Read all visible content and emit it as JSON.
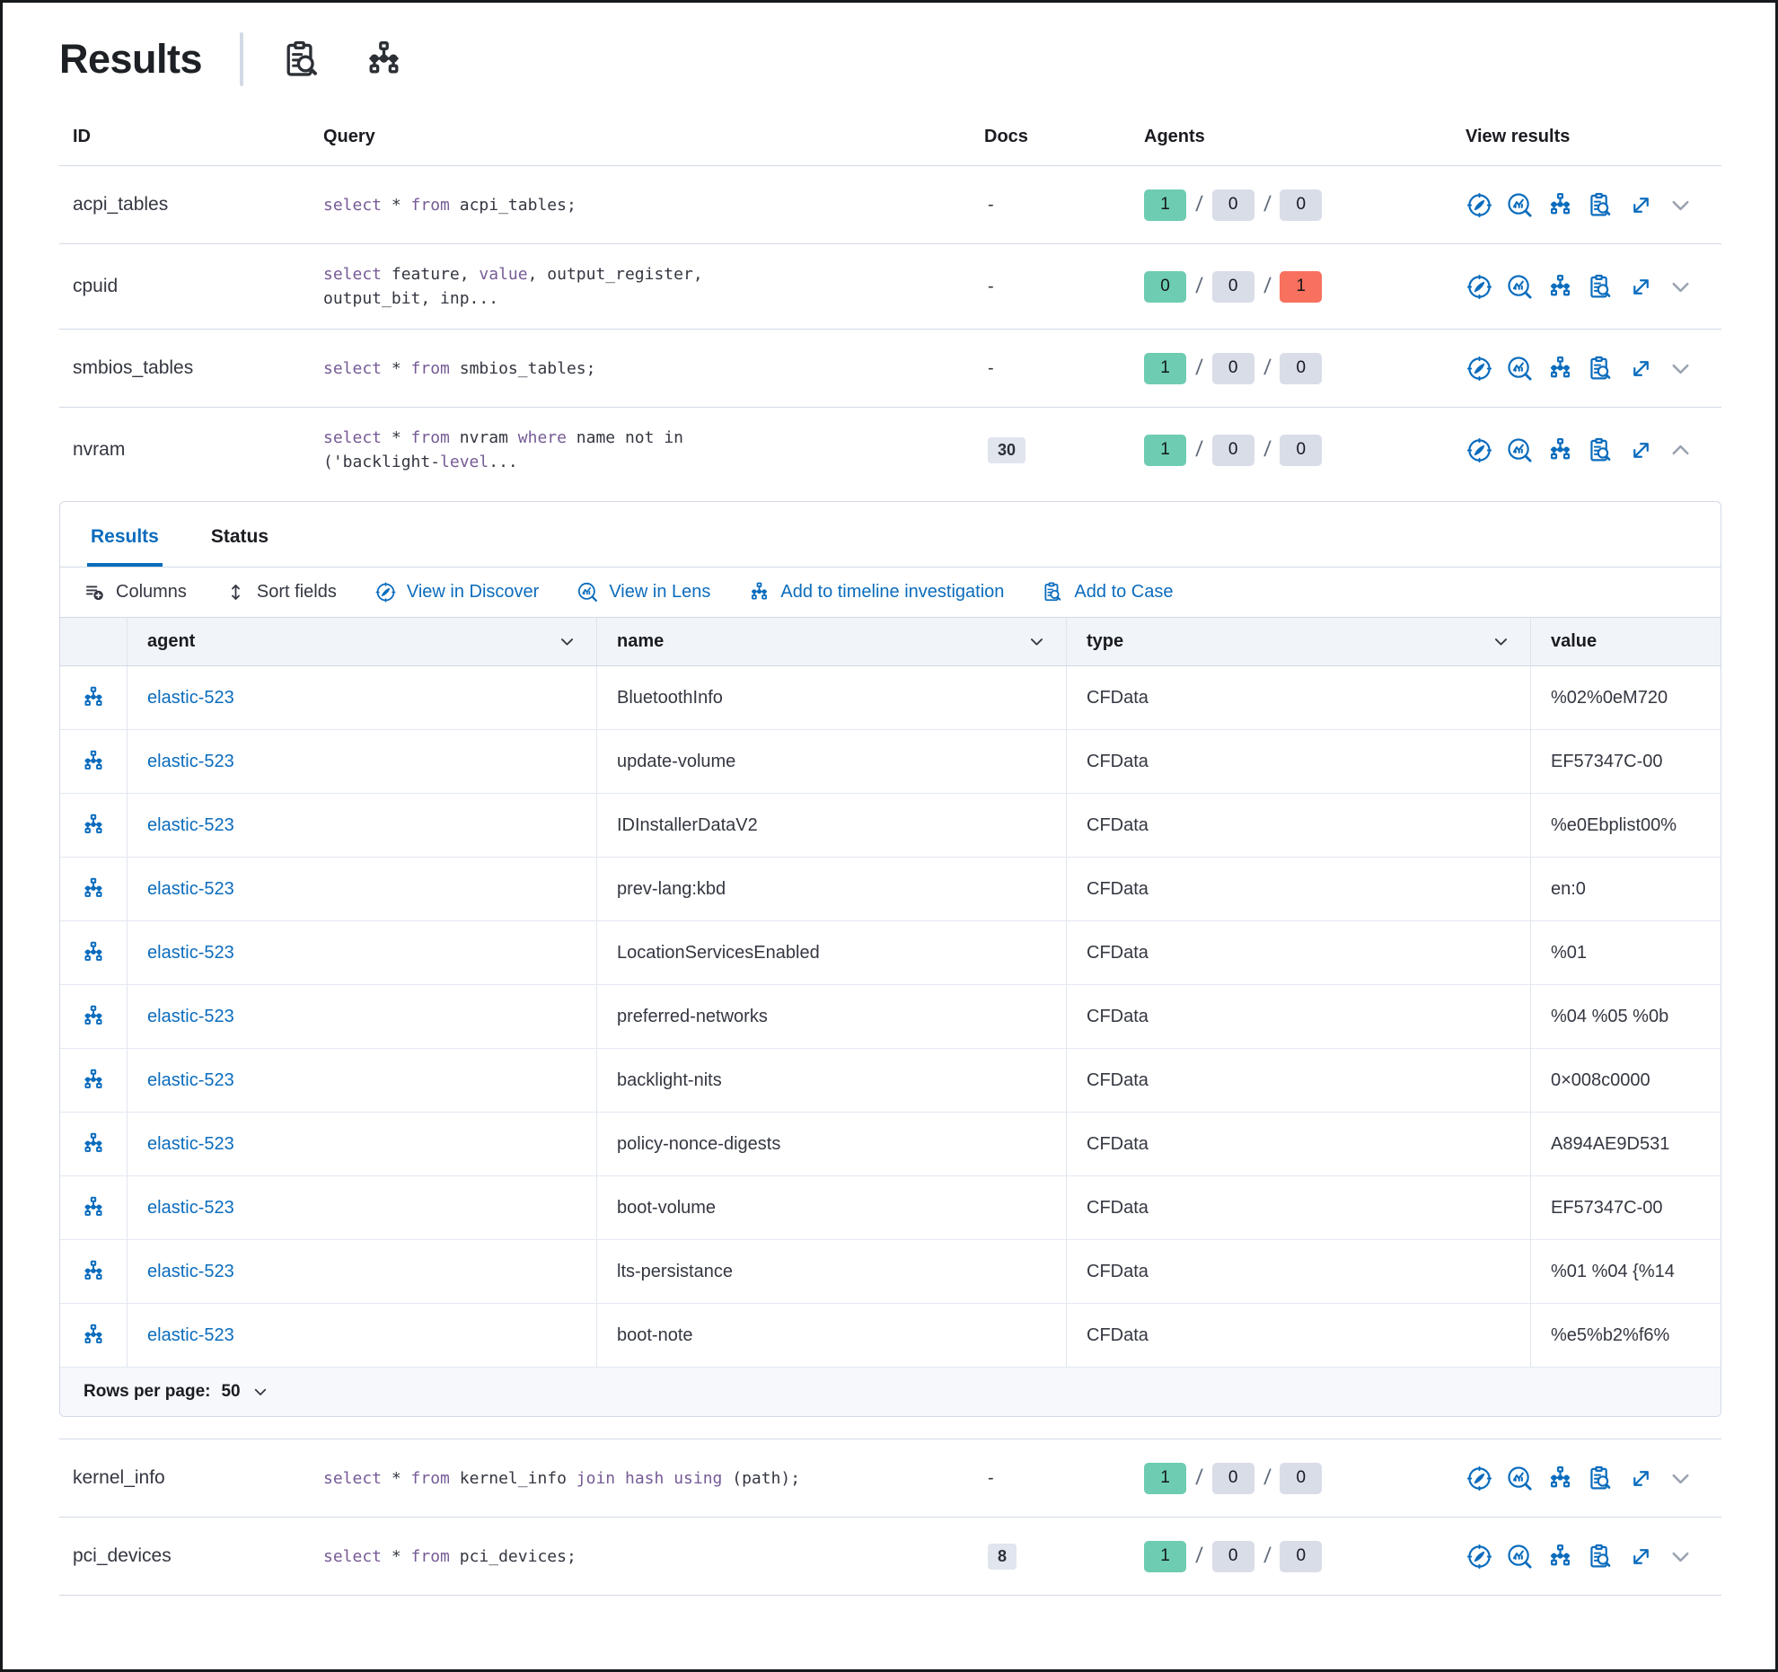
{
  "header": {
    "title": "Results",
    "icons": [
      "clipboard-search-icon",
      "network-diagram-icon"
    ]
  },
  "colors": {
    "accent_blue": "#0b6cbd",
    "keyword_purple": "#765b96",
    "badge_green": "#6dccb1",
    "badge_gray": "#d9dde8",
    "badge_red": "#f8705e",
    "docs_badge_bg": "#e0e5ee"
  },
  "table": {
    "headers": {
      "id": "ID",
      "query": "Query",
      "docs": "Docs",
      "agents": "Agents",
      "view": "View results"
    },
    "view_icons": [
      "view-in-discover-icon",
      "view-in-lens-icon",
      "add-to-timeline-icon",
      "add-to-case-icon",
      "open-fullscreen-icon",
      "toggle-row-icon"
    ],
    "rows": [
      {
        "id": "acpi_tables",
        "query": [
          [
            [
              "select",
              1
            ],
            [
              " * ",
              0
            ],
            [
              "from",
              1
            ],
            [
              " acpi_tables;",
              0
            ]
          ]
        ],
        "docs": "-",
        "docs_badge": false,
        "agents": [
          [
            "1",
            "green"
          ],
          [
            "0",
            "gray"
          ],
          [
            "0",
            "gray"
          ]
        ],
        "expanded": false
      },
      {
        "id": "cpuid",
        "query": [
          [
            [
              "select",
              1
            ],
            [
              " feature, ",
              0
            ],
            [
              "value",
              1
            ],
            [
              ", output_register,",
              0
            ]
          ],
          [
            [
              "output_bit, inp...",
              0
            ]
          ]
        ],
        "docs": "-",
        "docs_badge": false,
        "agents": [
          [
            "0",
            "green"
          ],
          [
            "0",
            "gray"
          ],
          [
            "1",
            "red"
          ]
        ],
        "expanded": false
      },
      {
        "id": "smbios_tables",
        "query": [
          [
            [
              "select",
              1
            ],
            [
              " * ",
              0
            ],
            [
              "from",
              1
            ],
            [
              " smbios_tables;",
              0
            ]
          ]
        ],
        "docs": "-",
        "docs_badge": false,
        "agents": [
          [
            "1",
            "green"
          ],
          [
            "0",
            "gray"
          ],
          [
            "0",
            "gray"
          ]
        ],
        "expanded": false
      },
      {
        "id": "nvram",
        "query": [
          [
            [
              "select",
              1
            ],
            [
              " * ",
              0
            ],
            [
              "from",
              1
            ],
            [
              " nvram ",
              0
            ],
            [
              "where",
              1
            ],
            [
              " name not in",
              0
            ]
          ],
          [
            [
              "('backlight-",
              0
            ],
            [
              "level",
              1
            ],
            [
              "...",
              0
            ]
          ]
        ],
        "docs": "30",
        "docs_badge": true,
        "agents": [
          [
            "1",
            "green"
          ],
          [
            "0",
            "gray"
          ],
          [
            "0",
            "gray"
          ]
        ],
        "expanded": true
      },
      {
        "id": "kernel_info",
        "query": [
          [
            [
              "select",
              1
            ],
            [
              " * ",
              0
            ],
            [
              "from",
              1
            ],
            [
              " kernel_info ",
              0
            ],
            [
              "join",
              1
            ],
            [
              " ",
              0
            ],
            [
              "hash",
              1
            ],
            [
              " ",
              0
            ],
            [
              "using",
              1
            ],
            [
              " (path);",
              0
            ]
          ]
        ],
        "docs": "-",
        "docs_badge": false,
        "agents": [
          [
            "1",
            "green"
          ],
          [
            "0",
            "gray"
          ],
          [
            "0",
            "gray"
          ]
        ],
        "expanded": false
      },
      {
        "id": "pci_devices",
        "query": [
          [
            [
              "select",
              1
            ],
            [
              " * ",
              0
            ],
            [
              "from",
              1
            ],
            [
              " pci_devices;",
              0
            ]
          ]
        ],
        "docs": "8",
        "docs_badge": true,
        "agents": [
          [
            "1",
            "green"
          ],
          [
            "0",
            "gray"
          ],
          [
            "0",
            "gray"
          ]
        ],
        "expanded": false
      }
    ]
  },
  "panel": {
    "tabs": [
      {
        "label": "Results",
        "active": true
      },
      {
        "label": "Status",
        "active": false
      }
    ],
    "toolbar": [
      {
        "label": "Columns",
        "icon": "columns-icon",
        "blue": false
      },
      {
        "label": "Sort fields",
        "icon": "sort-fields-icon",
        "blue": false
      },
      {
        "label": "View in Discover",
        "icon": "discover-icon",
        "blue": true
      },
      {
        "label": "View in Lens",
        "icon": "lens-icon",
        "blue": true
      },
      {
        "label": "Add to timeline investigation",
        "icon": "timeline-icon",
        "blue": true
      },
      {
        "label": "Add to Case",
        "icon": "case-icon",
        "blue": true
      }
    ],
    "grid": {
      "columns": [
        "agent",
        "name",
        "type",
        "value"
      ],
      "rows": [
        {
          "agent": "elastic-523",
          "name": "BluetoothInfo",
          "type": "CFData",
          "value": "%02%0eM720"
        },
        {
          "agent": "elastic-523",
          "name": "update-volume",
          "type": "CFData",
          "value": "EF57347C-00"
        },
        {
          "agent": "elastic-523",
          "name": "IDInstallerDataV2",
          "type": "CFData",
          "value": "%e0Ebplist00%"
        },
        {
          "agent": "elastic-523",
          "name": "prev-lang:kbd",
          "type": "CFData",
          "value": "en:0"
        },
        {
          "agent": "elastic-523",
          "name": "LocationServicesEnabled",
          "type": "CFData",
          "value": "%01"
        },
        {
          "agent": "elastic-523",
          "name": "preferred-networks",
          "type": "CFData",
          "value": "%04 %05 %0b"
        },
        {
          "agent": "elastic-523",
          "name": "backlight-nits",
          "type": "CFData",
          "value": "0×008c0000"
        },
        {
          "agent": "elastic-523",
          "name": "policy-nonce-digests",
          "type": "CFData",
          "value": "A894AE9D531"
        },
        {
          "agent": "elastic-523",
          "name": "boot-volume",
          "type": "CFData",
          "value": "EF57347C-00"
        },
        {
          "agent": "elastic-523",
          "name": "lts-persistance",
          "type": "CFData",
          "value": "%01 %04 {%14"
        },
        {
          "agent": "elastic-523",
          "name": "boot-note",
          "type": "CFData",
          "value": "%e5%b2%f6%"
        }
      ]
    },
    "footer": {
      "label": "Rows per page:",
      "value": "50"
    }
  }
}
